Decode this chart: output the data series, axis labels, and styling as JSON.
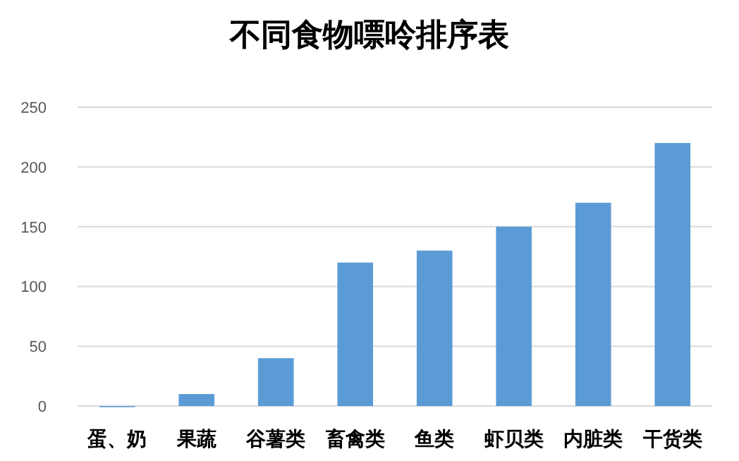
{
  "chart_data": {
    "type": "bar",
    "title": "不同食物嘌呤排序表",
    "categories": [
      "蛋、奶",
      "果蔬",
      "谷薯类",
      "畜禽类",
      "鱼类",
      "虾贝类",
      "内脏类",
      "干货类"
    ],
    "values": [
      0,
      10,
      40,
      120,
      130,
      150,
      170,
      220
    ],
    "color": "#5b9bd5",
    "ylim": [
      0,
      250
    ],
    "yticks": [
      0,
      50,
      100,
      150,
      200,
      250
    ],
    "grid": "y"
  }
}
